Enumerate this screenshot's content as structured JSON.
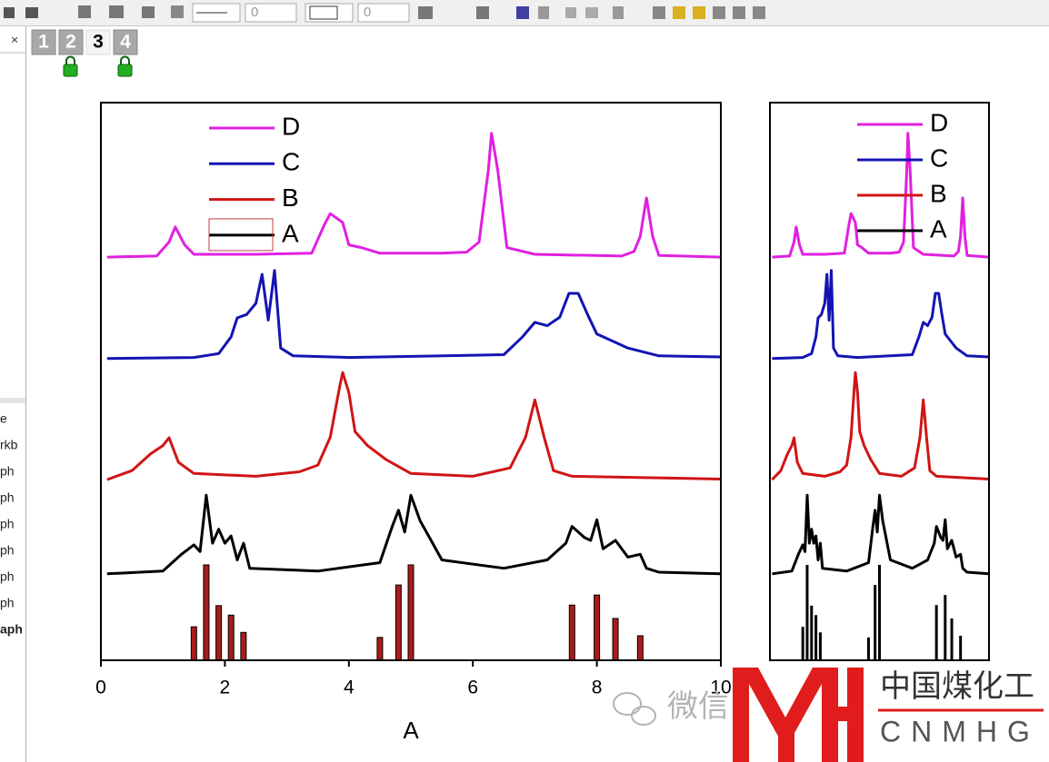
{
  "toolbar": {
    "fields": [
      "0",
      "0"
    ]
  },
  "tabs": [
    "1",
    "2",
    "3",
    "4"
  ],
  "sidebar_items": [
    "e",
    "rkb",
    "ph",
    "ph",
    "ph",
    "ph",
    "ph",
    "ph",
    "aph"
  ],
  "watermark": {
    "text": "微信",
    "logo_cn": "中国煤化工",
    "logo_en": "CNMHG"
  },
  "chart_data": {
    "type": "line",
    "xlabel": "A",
    "xlim": [
      0,
      10
    ],
    "xticks": [
      0,
      2,
      4,
      6,
      8,
      10
    ],
    "ylim": [
      0,
      100
    ],
    "series": [
      {
        "name": "A",
        "color": "#000000",
        "x": [
          0.1,
          1.0,
          1.3,
          1.5,
          1.6,
          1.7,
          1.8,
          1.9,
          2.0,
          2.1,
          2.2,
          2.3,
          2.4,
          3.5,
          4.5,
          4.7,
          4.8,
          4.9,
          5.0,
          5.15,
          5.3,
          5.5,
          6.5,
          7.2,
          7.5,
          7.6,
          7.8,
          7.9,
          8.0,
          8.1,
          8.3,
          8.5,
          8.7,
          8.8,
          9.0,
          10
        ],
        "values": [
          15.5,
          16,
          19,
          20.7,
          19.5,
          29.6,
          21,
          23.5,
          21,
          22.3,
          18,
          21,
          16.5,
          16,
          17.5,
          24,
          26.9,
          23,
          29.6,
          25,
          22,
          18,
          16.5,
          18,
          21,
          24,
          22,
          21.5,
          25.2,
          20,
          21.5,
          18.5,
          19,
          16.5,
          15.8,
          15.5
        ]
      },
      {
        "name": "B",
        "color": "#d01515",
        "x": [
          0.1,
          0.5,
          0.8,
          1.0,
          1.1,
          1.25,
          1.5,
          2.5,
          3.2,
          3.5,
          3.7,
          3.85,
          3.9,
          4.0,
          4.1,
          4.3,
          4.6,
          5.0,
          6.0,
          6.6,
          6.85,
          7.0,
          7.15,
          7.3,
          7.6,
          10
        ],
        "values": [
          32.4,
          34,
          37,
          38.5,
          39.9,
          35.5,
          33.5,
          33,
          33.8,
          35,
          40,
          49,
          51.6,
          48,
          41,
          38.5,
          36,
          33.5,
          33,
          34.5,
          40,
          46.7,
          40,
          34,
          33,
          32.5
        ]
      },
      {
        "name": "C",
        "color": "#1414b4",
        "x": [
          0.1,
          1.5,
          1.9,
          2.1,
          2.2,
          2.35,
          2.5,
          2.6,
          2.7,
          2.8,
          2.9,
          3.1,
          4,
          6.5,
          6.8,
          7.0,
          7.2,
          7.4,
          7.55,
          7.7,
          7.85,
          8.0,
          8.3,
          8.5,
          9,
          10
        ],
        "values": [
          54.1,
          54.3,
          55,
          58,
          61.4,
          62,
          64,
          69.2,
          61,
          69.9,
          56,
          54.6,
          54.3,
          54.8,
          58,
          60.6,
          60,
          61.5,
          65.8,
          65.8,
          62,
          58.5,
          57,
          56,
          54.6,
          54.4
        ]
      },
      {
        "name": "D",
        "color": "#e020e0",
        "x": [
          0.1,
          0.9,
          1.1,
          1.2,
          1.35,
          1.5,
          2.5,
          3.4,
          3.6,
          3.7,
          3.9,
          4.0,
          4.2,
          4.5,
          5.5,
          5.9,
          6.1,
          6.25,
          6.3,
          6.4,
          6.55,
          7.0,
          8.4,
          8.6,
          8.7,
          8.8,
          8.9,
          9.0,
          10
        ],
        "values": [
          72.3,
          72.5,
          75,
          77.7,
          74.5,
          72.8,
          72.8,
          73,
          78,
          80.1,
          78.5,
          74.5,
          74,
          73,
          73,
          73.2,
          75,
          88,
          94.5,
          88,
          74,
          72.8,
          72.5,
          73.3,
          76,
          82.9,
          76,
          72.6,
          72.3
        ]
      }
    ],
    "sticks": {
      "color": "#a81c1c",
      "x": [
        1.5,
        1.7,
        1.9,
        2.1,
        2.3,
        4.5,
        4.8,
        5.0,
        7.6,
        8.0,
        8.3,
        8.7
      ],
      "values": [
        6.0,
        17.1,
        9.8,
        8.1,
        5.0,
        4.1,
        13.5,
        17.1,
        9.9,
        11.7,
        7.5,
        4.4
      ]
    }
  }
}
